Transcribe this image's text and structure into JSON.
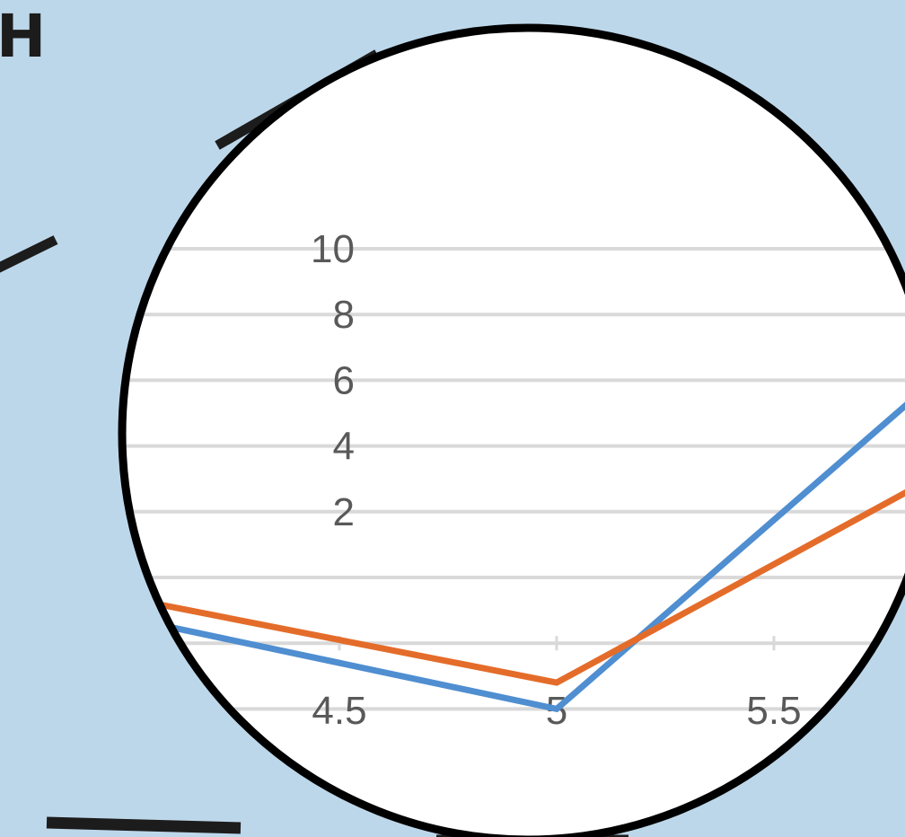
{
  "heading": {
    "text": "H"
  },
  "colors": {
    "background": "#bdd7ea",
    "ring": "#000000",
    "decor": "#1c1c1c",
    "grid": "#d9d9d9",
    "tick_text": "#595959"
  },
  "chart_data": {
    "type": "line",
    "title": "",
    "xlabel": "",
    "ylabel": "",
    "x_ticks": [
      "4.5",
      "5",
      "5.5"
    ],
    "y_ticks": [
      "2",
      "4",
      "6",
      "8",
      "10"
    ],
    "xlim": [
      4,
      6.3
    ],
    "ylim": [
      -4,
      10
    ],
    "grid": true,
    "legend": "none",
    "series": [
      {
        "color": "#4f8ed0",
        "x": [
          4,
          5,
          6
        ],
        "y": [
          -1.2,
          -4,
          7.5
        ]
      },
      {
        "color": "#e46c2a",
        "x": [
          4,
          5,
          6
        ],
        "y": [
          -0.6,
          -3.2,
          4
        ]
      }
    ]
  }
}
